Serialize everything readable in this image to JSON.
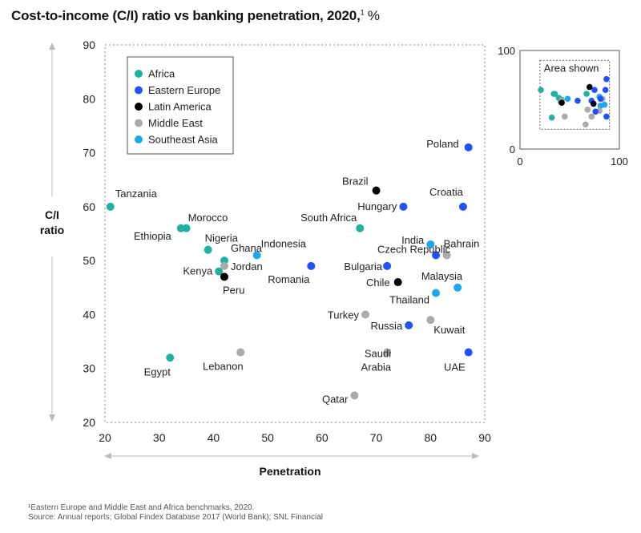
{
  "title": {
    "main": "Cost-to-income (C/I) ratio vs banking penetration, 2020,",
    "sup": "1",
    "unit": " %"
  },
  "footnotes": {
    "note": "¹Eastern Europe and Middle East and Africa benchmarks, 2020.",
    "source": "Source: Annual reports; Global Findex Database 2017 (World Bank); SNL Financial"
  },
  "colors": {
    "Africa": "#20b2a0",
    "Eastern Europe": "#2251ff",
    "Latin America": "#000000",
    "Middle East": "#aaaaaa",
    "Southeast Asia": "#1fa7ee"
  },
  "chart_data": [
    {
      "type": "scatter",
      "title": "Cost-to-income (C/I) ratio vs banking penetration, 2020",
      "xlabel": "Penetration",
      "ylabel": [
        "C/I",
        "ratio"
      ],
      "xlim": [
        20,
        90
      ],
      "ylim": [
        20,
        90
      ],
      "xticks": [
        20,
        30,
        40,
        50,
        60,
        70,
        80,
        90
      ],
      "yticks": [
        20,
        30,
        40,
        50,
        60,
        70,
        80,
        90
      ],
      "legend": [
        "Africa",
        "Eastern Europe",
        "Latin America",
        "Middle East",
        "Southeast Asia"
      ],
      "points": [
        {
          "label": "Tanzania",
          "group": "Africa",
          "x": 21,
          "y": 60
        },
        {
          "label": "Morocco",
          "group": "Africa",
          "x": 35,
          "y": 56
        },
        {
          "label": "Ethiopia",
          "group": "Africa",
          "x": 34,
          "y": 56
        },
        {
          "label": "Nigeria",
          "group": "Africa",
          "x": 39,
          "y": 52
        },
        {
          "label": "Ghana",
          "group": "Africa",
          "x": 42,
          "y": 50
        },
        {
          "label": "Kenya",
          "group": "Africa",
          "x": 41,
          "y": 48
        },
        {
          "label": "Egypt",
          "group": "Africa",
          "x": 32,
          "y": 32
        },
        {
          "label": "South Africa",
          "group": "Africa",
          "x": 67,
          "y": 56
        },
        {
          "label": "Jordan",
          "group": "Middle East",
          "x": 42,
          "y": 49
        },
        {
          "label": "Peru",
          "group": "Latin America",
          "x": 42,
          "y": 47
        },
        {
          "label": "Indonesia",
          "group": "Southeast Asia",
          "x": 48,
          "y": 51
        },
        {
          "label": "Lebanon",
          "group": "Middle East",
          "x": 45,
          "y": 33
        },
        {
          "label": "Romania",
          "group": "Eastern Europe",
          "x": 58,
          "y": 49
        },
        {
          "label": "Brazil",
          "group": "Latin America",
          "x": 70,
          "y": 63
        },
        {
          "label": "Hungary",
          "group": "Eastern Europe",
          "x": 75,
          "y": 60
        },
        {
          "label": "Poland",
          "group": "Eastern Europe",
          "x": 87,
          "y": 71
        },
        {
          "label": "Croatia",
          "group": "Eastern Europe",
          "x": 86,
          "y": 60
        },
        {
          "label": "India",
          "group": "Southeast Asia",
          "x": 80,
          "y": 53
        },
        {
          "label": "Bahrain",
          "group": "Middle East",
          "x": 83,
          "y": 51
        },
        {
          "label": "Czech Republic",
          "group": "Eastern Europe",
          "x": 81,
          "y": 51
        },
        {
          "label": "Bulgaria",
          "group": "Eastern Europe",
          "x": 72,
          "y": 49
        },
        {
          "label": "Chile",
          "group": "Latin America",
          "x": 74,
          "y": 46
        },
        {
          "label": "Malaysia",
          "group": "Southeast Asia",
          "x": 85,
          "y": 45
        },
        {
          "label": "Thailand",
          "group": "Southeast Asia",
          "x": 81,
          "y": 44
        },
        {
          "label": "Turkey",
          "group": "Middle East",
          "x": 68,
          "y": 40
        },
        {
          "label": "Kuwait",
          "group": "Middle East",
          "x": 80,
          "y": 39
        },
        {
          "label": "Russia",
          "group": "Eastern Europe",
          "x": 76,
          "y": 38
        },
        {
          "label": "Saudi Arabia",
          "group": "Middle East",
          "x": 72,
          "y": 33
        },
        {
          "label": "UAE",
          "group": "Eastern Europe",
          "x": 87,
          "y": 33
        },
        {
          "label": "Qatar",
          "group": "Middle East",
          "x": 66,
          "y": 25
        }
      ]
    },
    {
      "type": "scatter",
      "title": "Area shown",
      "xlim": [
        0,
        100
      ],
      "ylim": [
        0,
        100
      ],
      "xticks": [
        0,
        100
      ],
      "yticks": [
        0,
        100
      ]
    }
  ]
}
